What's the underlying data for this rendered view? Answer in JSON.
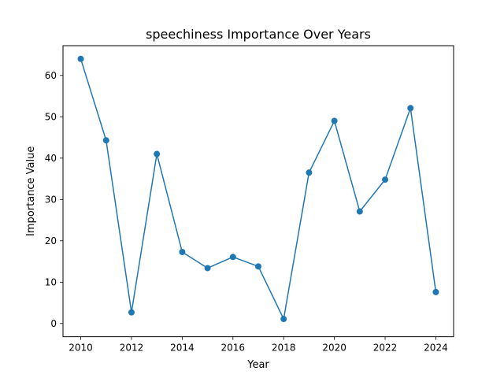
{
  "chart_data": {
    "type": "line",
    "title": "speechiness Importance Over Years",
    "xlabel": "Year",
    "ylabel": "Importance Value",
    "x": [
      2010,
      2011,
      2012,
      2013,
      2014,
      2015,
      2016,
      2017,
      2018,
      2019,
      2020,
      2021,
      2022,
      2023,
      2024
    ],
    "series": [
      {
        "values": [
          64.0,
          44.3,
          2.7,
          41.0,
          17.3,
          13.4,
          16.1,
          13.8,
          1.1,
          36.5,
          49.0,
          27.1,
          34.8,
          52.1,
          7.6
        ],
        "color": "#1f77b4",
        "marker": "circle"
      }
    ],
    "xlim": [
      2009.3,
      2024.7
    ],
    "ylim": [
      -3.2,
      67.2
    ],
    "xticks": [
      "2010",
      "2012",
      "2014",
      "2016",
      "2018",
      "2020",
      "2022",
      "2024"
    ],
    "yticks": [
      "0",
      "10",
      "20",
      "30",
      "40",
      "50",
      "60"
    ],
    "grid": false,
    "legend": "none"
  }
}
